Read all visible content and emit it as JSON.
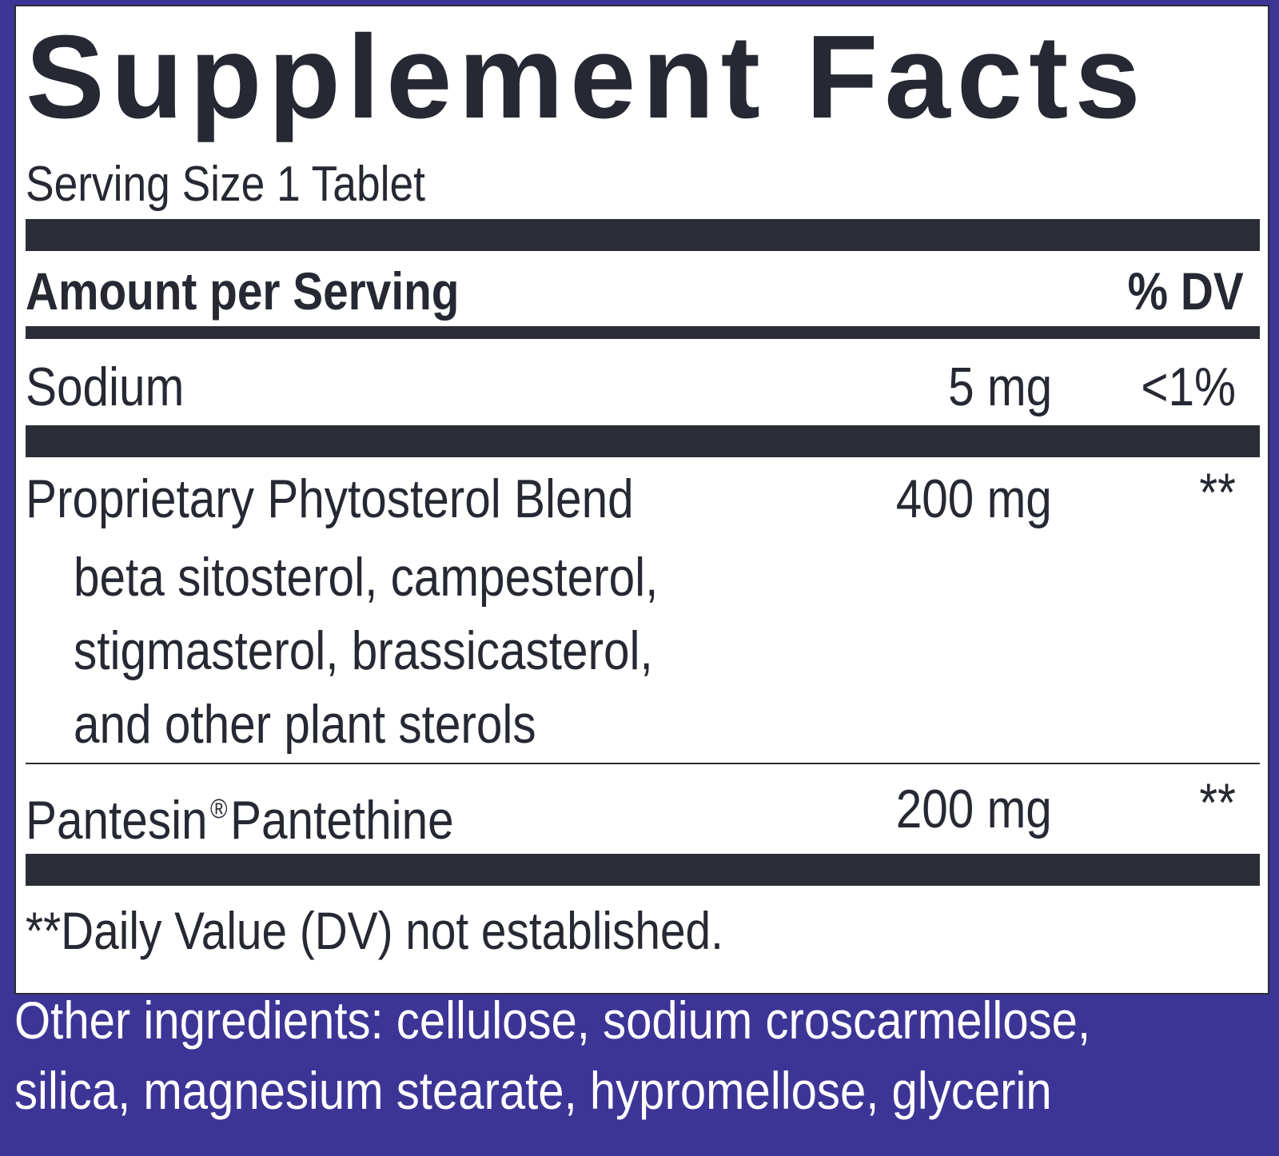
{
  "panel": {
    "title": "Supplement Facts",
    "serving_size": "Serving Size 1 Tablet",
    "header": {
      "amount_label": "Amount per Serving",
      "dv_label": "% DV"
    },
    "sodium": {
      "name": "Sodium",
      "amount": "5 mg",
      "dv": "<1%"
    },
    "blend": {
      "name": "Proprietary Phytosterol Blend",
      "amount": "400 mg",
      "dv": "**",
      "components": [
        "beta sitosterol, campesterol,",
        "stigmasterol, brassicasterol,",
        "and other plant sterols"
      ]
    },
    "pantesin": {
      "name_part1": "Pantesin",
      "registered_mark": "®",
      "name_part2": "Pantethine",
      "amount": "200 mg",
      "dv": "**"
    },
    "footnote": "**Daily Value (DV) not established."
  },
  "other_ingredients": {
    "line1": "Other ingredients: cellulose, sodium croscarmellose,",
    "line2": "silica, magnesium stearate, hypromellose, glycerin"
  },
  "colors": {
    "background": "#3d3596",
    "panel": "#ffffff",
    "ink": "#262833"
  }
}
